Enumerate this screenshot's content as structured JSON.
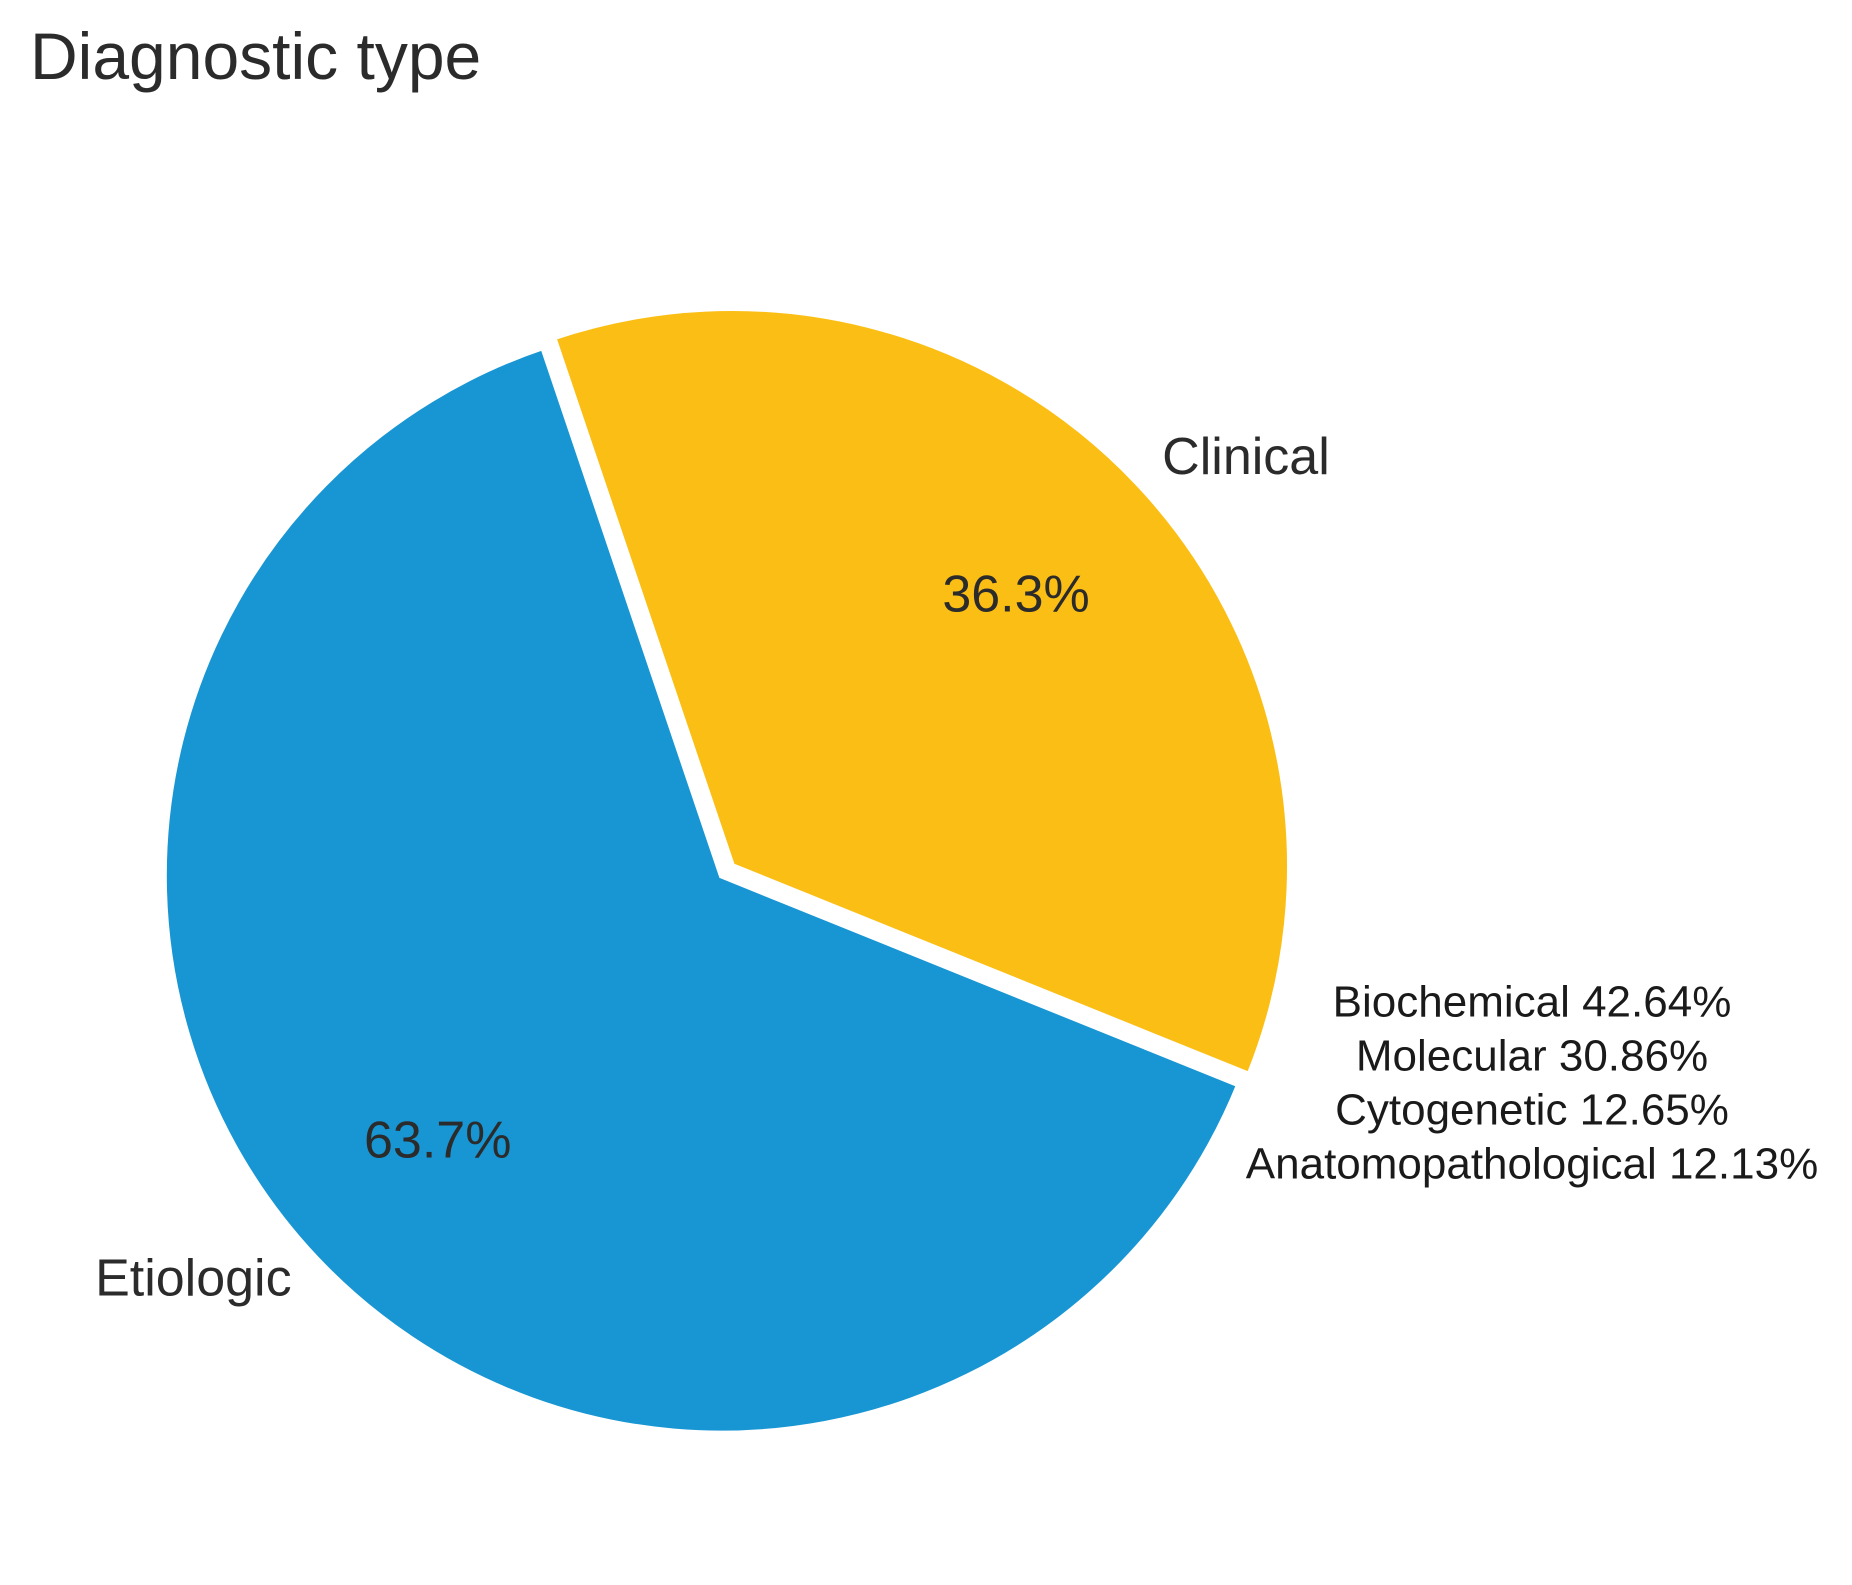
{
  "chart_data": {
    "type": "pie",
    "title": "Diagnostic type",
    "slices": [
      {
        "name": "Etiologic",
        "value": 63.7,
        "label": "63.7%",
        "color": "#1896d3"
      },
      {
        "name": "Clinical",
        "value": 36.3,
        "label": "36.3%",
        "color": "#fbbe14"
      }
    ],
    "breakdown": {
      "parent": "Etiologic",
      "items": [
        {
          "name": "Biochemical",
          "value": 42.64,
          "label": "Biochemical 42.64%"
        },
        {
          "name": "Molecular",
          "value": 30.86,
          "label": "Molecular 30.86%"
        },
        {
          "name": "Cytogenetic",
          "value": 12.65,
          "label": "Cytogenetic 12.65%"
        },
        {
          "name": "Anatomopathological",
          "value": 12.13,
          "label": "Anatomopathological 12.13%"
        }
      ]
    },
    "legend": "none"
  }
}
